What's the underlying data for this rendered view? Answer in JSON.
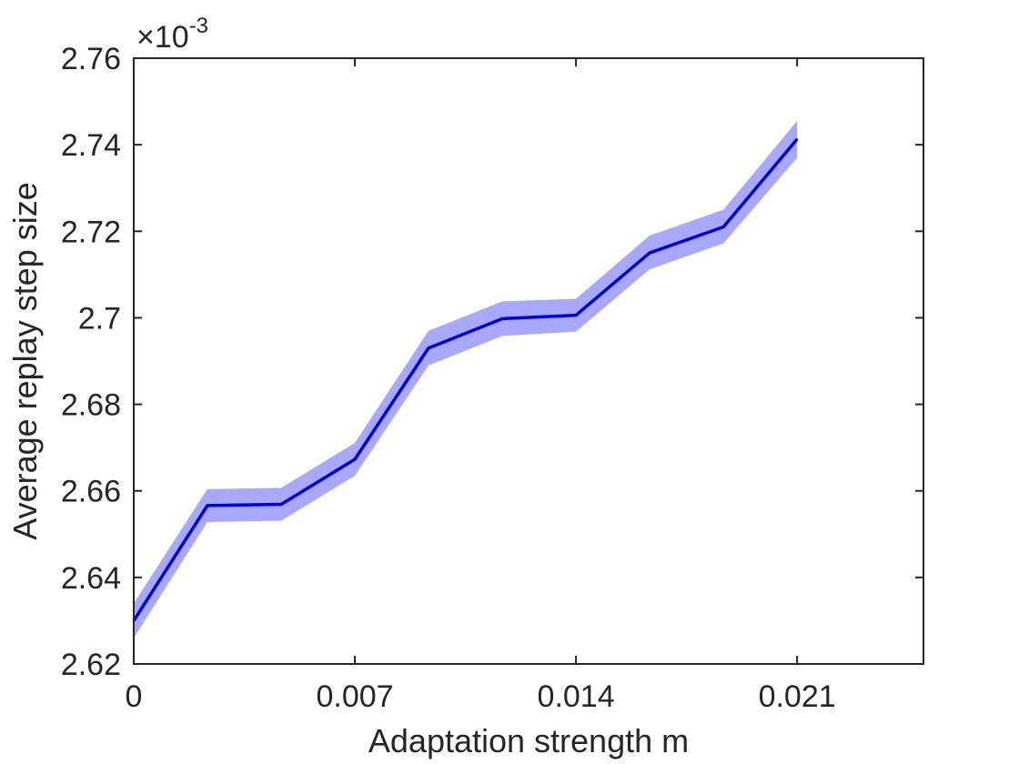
{
  "chart_data": {
    "type": "line",
    "title": "",
    "xlabel": "Adaptation strength m",
    "ylabel": "Average replay step size",
    "y_multiplier": {
      "base": "×10",
      "exponent": "-3"
    },
    "xlim": [
      0,
      0.025
    ],
    "ylim": [
      2.62,
      2.76
    ],
    "xticks": [
      0,
      0.007,
      0.014,
      0.021
    ],
    "xtick_labels": [
      "0",
      "0.007",
      "0.014",
      "0.021"
    ],
    "yticks": [
      2.62,
      2.64,
      2.66,
      2.68,
      2.7,
      2.72,
      2.74,
      2.76
    ],
    "ytick_labels": [
      "2.62",
      "2.64",
      "2.66",
      "2.68",
      "2.7",
      "2.72",
      "2.74",
      "2.76"
    ],
    "grid": false,
    "series": [
      {
        "line_color": "#0000dd",
        "band_color": "#9999ff",
        "x": [
          0,
          0.00233,
          0.00467,
          0.007,
          0.00933,
          0.01167,
          0.014,
          0.01633,
          0.01867,
          0.021
        ],
        "y": [
          2.63,
          2.6566,
          2.6569,
          2.6673,
          2.693,
          2.6998,
          2.7006,
          2.715,
          2.721,
          2.7413
        ],
        "y_lower": [
          2.626,
          2.6528,
          2.6531,
          2.6635,
          2.689,
          2.6958,
          2.6968,
          2.7112,
          2.7172,
          2.737
        ],
        "y_upper": [
          2.634,
          2.6604,
          2.6607,
          2.6711,
          2.697,
          2.7038,
          2.7044,
          2.719,
          2.725,
          2.7455
        ]
      }
    ]
  }
}
